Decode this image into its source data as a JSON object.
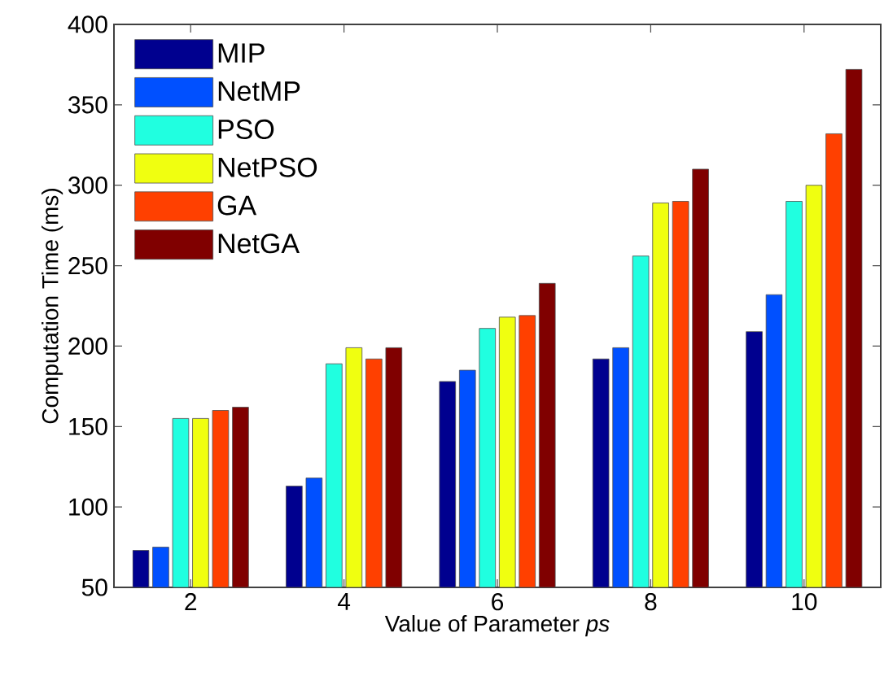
{
  "chart_data": {
    "type": "bar",
    "xlabel": "Value of Parameter *ps*",
    "ylabel": "Computation Time (ms)",
    "categories": [
      "2",
      "4",
      "6",
      "8",
      "10"
    ],
    "ylim": [
      50,
      400
    ],
    "yticks": [
      50,
      100,
      150,
      200,
      250,
      300,
      350,
      400
    ],
    "legend": "top left",
    "series": [
      {
        "name": "MIP",
        "color": "#00008f",
        "values": [
          73,
          113,
          178,
          192,
          209
        ]
      },
      {
        "name": "NetMP",
        "color": "#0050ff",
        "values": [
          75,
          118,
          185,
          199,
          232
        ]
      },
      {
        "name": "PSO",
        "color": "#20ffe0",
        "values": [
          155,
          189,
          211,
          256,
          290
        ]
      },
      {
        "name": "NetPSO",
        "color": "#f0ff10",
        "values": [
          155,
          199,
          218,
          289,
          300
        ]
      },
      {
        "name": "GA",
        "color": "#ff4000",
        "values": [
          160,
          192,
          219,
          290,
          332
        ]
      },
      {
        "name": "NetGA",
        "color": "#800000",
        "values": [
          162,
          199,
          239,
          310,
          372
        ]
      }
    ]
  }
}
